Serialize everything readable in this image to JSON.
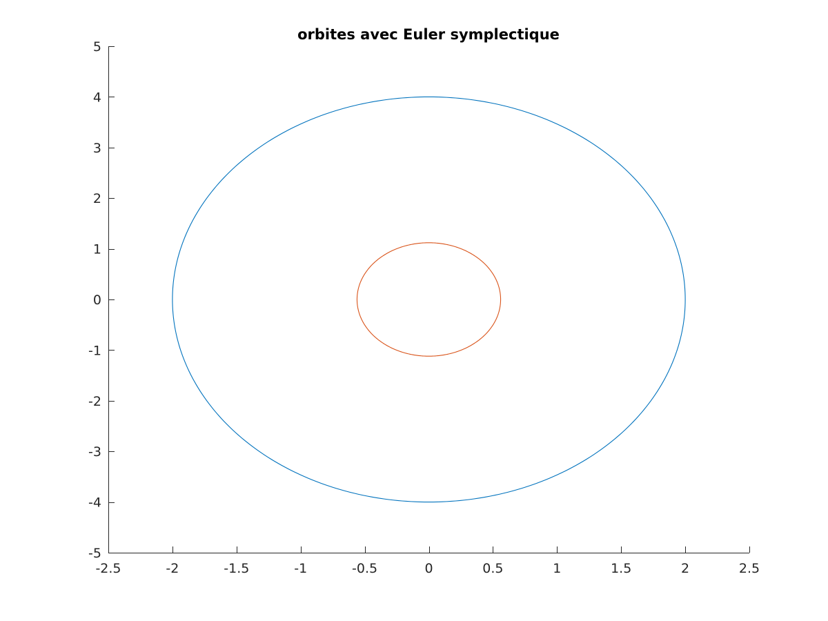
{
  "chart_data": {
    "type": "line",
    "title": "orbites avec Euler symplectique",
    "xlabel": "",
    "ylabel": "",
    "xlim": [
      -2.5,
      2.5
    ],
    "ylim": [
      -5,
      5
    ],
    "xticks": [
      -2.5,
      -2,
      -1.5,
      -1,
      -0.5,
      0,
      0.5,
      1,
      1.5,
      2,
      2.5
    ],
    "yticks": [
      -5,
      -4,
      -3,
      -2,
      -1,
      0,
      1,
      2,
      3,
      4,
      5
    ],
    "xtick_labels": [
      "-2.5",
      "-2",
      "-1.5",
      "-1",
      "-0.5",
      "0",
      "0.5",
      "1",
      "1.5",
      "2",
      "2.5"
    ],
    "ytick_labels": [
      "-5",
      "-4",
      "-3",
      "-2",
      "-1",
      "0",
      "1",
      "2",
      "3",
      "4",
      "5"
    ],
    "grid": false,
    "legend": "none",
    "series": [
      {
        "shape": "closed-orbit",
        "center": [
          0,
          0
        ],
        "x_semi_axis": 2,
        "y_semi_axis": 4,
        "color": "#0072BD"
      },
      {
        "shape": "closed-orbit",
        "center": [
          0,
          0
        ],
        "x_semi_axis": 0.56,
        "y_semi_axis": 1.12,
        "color": "#D95319"
      }
    ]
  }
}
